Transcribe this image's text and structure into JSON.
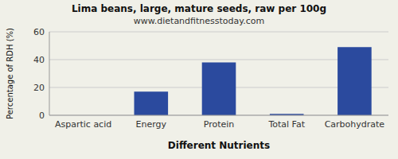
{
  "chart_data": {
    "type": "bar",
    "title": "Lima beans, large, mature seeds, raw per 100g",
    "subtitle": "www.dietandfitnesstoday.com",
    "xlabel": "Different Nutrients",
    "ylabel": "Percentage of RDH (%)",
    "categories": [
      "Aspartic acid",
      "Energy",
      "Protein",
      "Total Fat",
      "Carbohydrate"
    ],
    "values": [
      0,
      17,
      38,
      1,
      49
    ],
    "color": "#2b4a9e",
    "ylim": [
      0,
      60
    ],
    "yticks": [
      0,
      20,
      40,
      60
    ],
    "grid": true
  }
}
